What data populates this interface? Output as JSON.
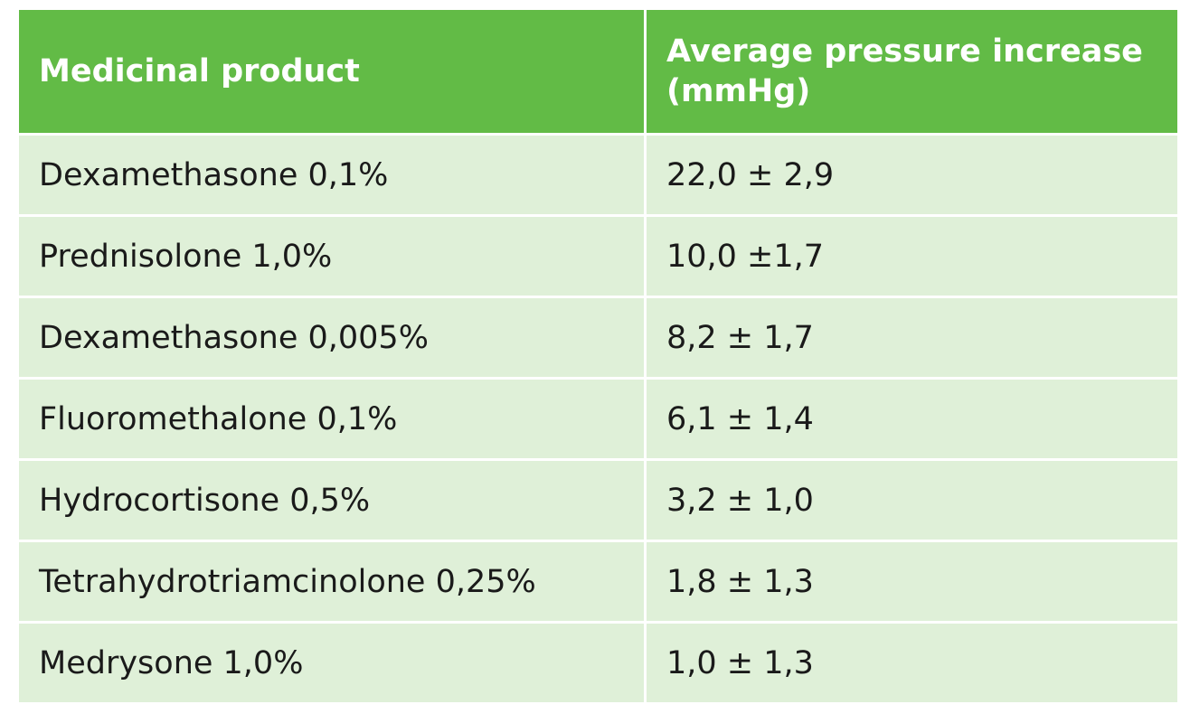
{
  "table": {
    "colors": {
      "header_bg": "#62bb46",
      "header_text": "#ffffff",
      "row_bg": "#dff0d8",
      "grid_line": "#ffffff"
    },
    "headers": [
      "Medicinal product",
      "Average pressure increase (mmHg)"
    ],
    "rows": [
      [
        "Dexamethasone 0,1%",
        "22,0 ± 2,9"
      ],
      [
        "Prednisolone 1,0%",
        "10,0 ±1,7"
      ],
      [
        "Dexamethasone 0,005%",
        "8,2 ± 1,7"
      ],
      [
        "Fluoromethalone 0,1%",
        "6,1 ± 1,4"
      ],
      [
        "Hydrocortisone 0,5%",
        "3,2 ± 1,0"
      ],
      [
        "Tetrahydrotriamcinolone 0,25%",
        "1,8 ± 1,3"
      ],
      [
        "Medrysone 1,0%",
        "1,0 ± 1,3"
      ]
    ]
  }
}
